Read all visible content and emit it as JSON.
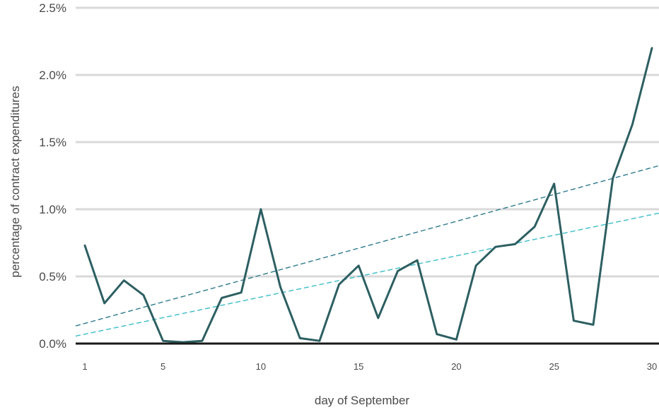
{
  "chart_data": {
    "type": "line",
    "title": "",
    "xlabel": "day of September",
    "ylabel": "percentage of contract expenditures",
    "x": [
      1,
      2,
      3,
      4,
      5,
      6,
      7,
      8,
      9,
      10,
      11,
      12,
      13,
      14,
      15,
      16,
      17,
      18,
      19,
      20,
      21,
      22,
      23,
      24,
      25,
      26,
      27,
      28,
      29,
      30
    ],
    "xlim": [
      1,
      30
    ],
    "ylim": [
      0,
      2.5
    ],
    "x_ticks": [
      1,
      5,
      10,
      15,
      20,
      25,
      30
    ],
    "x_tick_labels": [
      "1",
      "5",
      "10",
      "15",
      "20",
      "25",
      "30"
    ],
    "y_ticks": [
      0,
      0.5,
      1.0,
      1.5,
      2.0,
      2.5
    ],
    "y_tick_labels": [
      "0.0%",
      "0.5%",
      "1.0%",
      "1.5%",
      "2.0%",
      "2.5%"
    ],
    "grid": true,
    "series": [
      {
        "values": [
          0.73,
          0.3,
          0.47,
          0.36,
          0.02,
          0.01,
          0.02,
          0.34,
          0.38,
          1.0,
          0.42,
          0.04,
          0.02,
          0.44,
          0.58,
          0.19,
          0.54,
          0.62,
          0.07,
          0.03,
          0.58,
          0.72,
          0.74,
          0.87,
          1.19,
          0.17,
          0.14,
          1.23,
          1.63,
          2.2
        ],
        "color": "#2d5f62",
        "style": "solid"
      }
    ],
    "trend_lines": [
      {
        "start": [
          1,
          0.15
        ],
        "end": [
          30,
          1.31
        ],
        "color": "#2d7a8c",
        "style": "dashed"
      },
      {
        "start": [
          1,
          0.07
        ],
        "end": [
          30,
          0.96
        ],
        "color": "#3bbdc7",
        "style": "dashed"
      }
    ],
    "colors": {
      "grid": "#d9d9d9",
      "baseline": "#1a1a1a",
      "text": "#4a4a4a"
    }
  }
}
